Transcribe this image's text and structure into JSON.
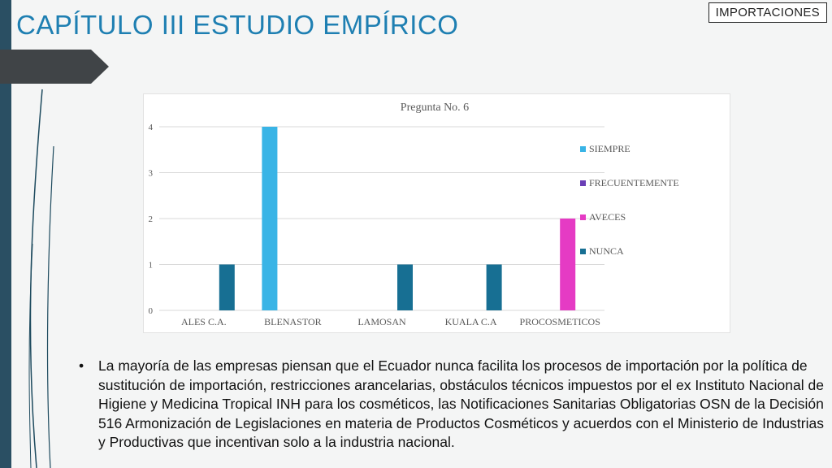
{
  "slide": {
    "title": "CAPÍTULO III ESTUDIO EMPÍRICO",
    "tag": "IMPORTACIONES",
    "bullet": "La mayoría de las empresas piensan que el Ecuador nunca facilita los procesos de importación por la política de sustitución de importación, restricciones arancelarias, obstáculos técnicos impuestos por el ex Instituto Nacional de Higiene y Medicina Tropical INH para los cosméticos, las Notificaciones Sanitarias Obligatorias OSN de la Decisión 516 Armonización de Legislaciones en materia de Productos Cosméticos y acuerdos con el Ministerio de Industrias y Productivas que incentivan solo a la industria nacional."
  },
  "chart_data": {
    "type": "bar",
    "title": "Pregunta No. 6",
    "categories": [
      "ALES C.A.",
      "BLENASTOR",
      "LAMOSAN",
      "KUALA C.A",
      "PROCOSMETICOS"
    ],
    "series": [
      {
        "name": "SIEMPRE",
        "color": "#39b4e6",
        "values": [
          0,
          4,
          0,
          0,
          0
        ]
      },
      {
        "name": "FRECUENTEMENTE",
        "color": "#6a3fb6",
        "values": [
          0,
          0,
          0,
          0,
          0
        ]
      },
      {
        "name": "AVECES",
        "color": "#e53bc4",
        "values": [
          0,
          0,
          0,
          0,
          2
        ]
      },
      {
        "name": "NUNCA",
        "color": "#176f93",
        "values": [
          1,
          0,
          1,
          1,
          0
        ]
      }
    ],
    "yticks": [
      "0",
      "1",
      "2",
      "3",
      "4"
    ],
    "ylim": [
      0,
      4
    ],
    "grid": true,
    "legend_position": "right"
  }
}
